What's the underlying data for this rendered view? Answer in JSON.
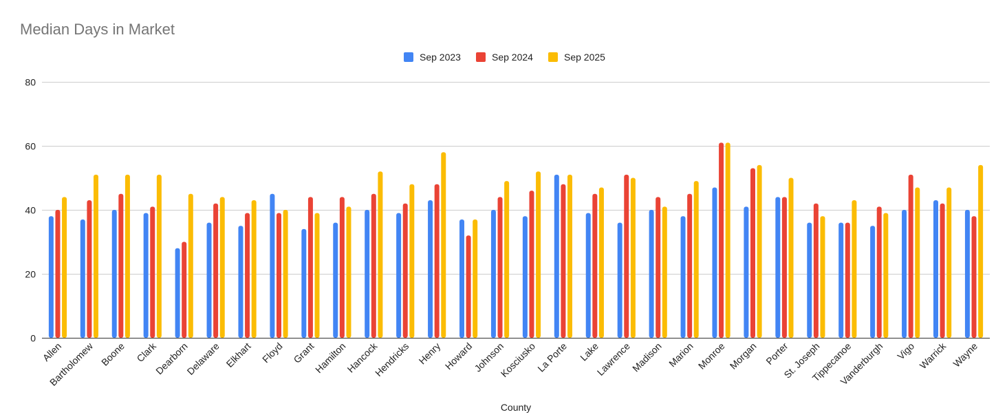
{
  "chart_data": {
    "type": "bar",
    "title": "Median Days in Market",
    "xlabel": "County",
    "ylabel": "",
    "ylim": [
      0,
      80
    ],
    "yticks": [
      0,
      20,
      40,
      60,
      80
    ],
    "grid": true,
    "legend_position": "top-center",
    "categories": [
      "Allen",
      "Bartholomew",
      "Boone",
      "Clark",
      "Dearborn",
      "Delaware",
      "Elkhart",
      "Floyd",
      "Grant",
      "Hamilton",
      "Hancock",
      "Hendricks",
      "Henry",
      "Howard",
      "Johnson",
      "Kosciusko",
      "La Porte",
      "Lake",
      "Lawrence",
      "Madison",
      "Marion",
      "Monroe",
      "Morgan",
      "Porter",
      "St. Joseph",
      "Tippecanoe",
      "Vanderburgh",
      "Vigo",
      "Warrick",
      "Wayne"
    ],
    "series": [
      {
        "name": "Sep 2023",
        "color": "#4285F4",
        "values": [
          38,
          37,
          40,
          39,
          28,
          36,
          35,
          45,
          34,
          36,
          40,
          39,
          43,
          37,
          40,
          38,
          51,
          39,
          36,
          40,
          38,
          47,
          41,
          44,
          36,
          36,
          35,
          40,
          43,
          40
        ]
      },
      {
        "name": "Sep 2024",
        "color": "#EA4335",
        "values": [
          40,
          43,
          45,
          41,
          30,
          42,
          39,
          39,
          44,
          44,
          45,
          42,
          48,
          32,
          44,
          46,
          48,
          45,
          51,
          44,
          45,
          61,
          53,
          44,
          42,
          36,
          41,
          51,
          42,
          38
        ]
      },
      {
        "name": "Sep 2025",
        "color": "#FBBC04",
        "values": [
          44,
          51,
          51,
          51,
          45,
          44,
          43,
          40,
          39,
          41,
          52,
          48,
          58,
          37,
          49,
          52,
          51,
          47,
          50,
          41,
          49,
          61,
          54,
          50,
          38,
          43,
          39,
          47,
          47,
          54
        ]
      }
    ]
  }
}
